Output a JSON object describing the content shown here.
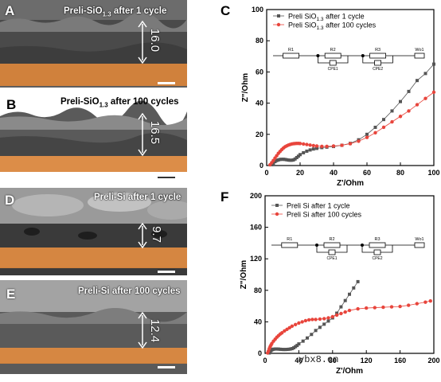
{
  "sem_panels": [
    {
      "letter": "A",
      "label_main": "Preli-SiO",
      "label_sub": "1.3",
      "label_tail": " after 1 cycle",
      "thickness": "16.0"
    },
    {
      "letter": "B",
      "label_main": "Preli-SiO",
      "label_sub": "1.3",
      "label_tail": " after 100 cycles",
      "thickness": "16.5"
    },
    {
      "letter": "D",
      "label_main": "Preli-Si after 1 cycle",
      "label_sub": "",
      "label_tail": "",
      "thickness": "9.7"
    },
    {
      "letter": "E",
      "label_main": "Preli-Si after 100 cycles",
      "label_sub": "",
      "label_tail": "",
      "thickness": "12.4"
    }
  ],
  "circuit": {
    "labels": [
      "R1",
      "R2",
      "R3",
      "Wo1"
    ],
    "cpe": [
      "CPE1",
      "CPE2"
    ]
  },
  "watermark": "ybx8.cn",
  "chart_data": [
    {
      "panel": "C",
      "type": "scatter",
      "xlabel": "Z'/Ohm",
      "ylabel": "Z\"/Ohm",
      "xlim": [
        0,
        100
      ],
      "ylim": [
        0,
        100
      ],
      "xticks": [
        0,
        20,
        40,
        60,
        80,
        100
      ],
      "yticks": [
        0,
        20,
        40,
        60,
        80,
        100
      ],
      "series": [
        {
          "name_main": "Preli SiO",
          "name_sub": "1.3",
          "name_tail": " after 1 cycle",
          "color": "#555555",
          "marker": "square",
          "x": [
            3,
            4,
            5,
            6,
            7,
            8,
            9,
            10,
            11,
            12,
            13,
            14,
            15,
            16,
            17,
            18,
            19,
            20,
            22,
            24,
            26,
            28,
            30,
            33,
            36,
            40,
            45,
            50,
            55,
            60,
            65,
            70,
            75,
            80,
            85,
            90,
            95,
            100
          ],
          "y": [
            0.5,
            1.5,
            2.5,
            3.2,
            3.6,
            3.9,
            4.0,
            4.0,
            3.9,
            3.7,
            3.5,
            3.4,
            3.4,
            3.6,
            4.2,
            5.1,
            6.0,
            7.0,
            8.2,
            9.2,
            10.0,
            10.6,
            11.0,
            11.5,
            11.8,
            12.2,
            13.0,
            14.2,
            16.5,
            20.0,
            24.5,
            29.5,
            35.0,
            41.0,
            47.5,
            54.5,
            59.0,
            65.0
          ]
        },
        {
          "name_main": "Preli SiO",
          "name_sub": "1.3",
          "name_tail": " after 100 cycles",
          "color": "#e8453c",
          "marker": "circle",
          "x": [
            2,
            3,
            4,
            5,
            6,
            7,
            8,
            9,
            10,
            11,
            12,
            13,
            14,
            15,
            16,
            17,
            18,
            19,
            20,
            22,
            24,
            26,
            28,
            30,
            33,
            36,
            40,
            45,
            50,
            55,
            60,
            65,
            70,
            75,
            80,
            85,
            90,
            95,
            100
          ],
          "y": [
            0.5,
            1.8,
            3.2,
            4.8,
            6.3,
            7.8,
            9.0,
            10.2,
            11.2,
            12.0,
            12.6,
            13.1,
            13.5,
            13.8,
            14.0,
            14.1,
            14.2,
            14.2,
            14.1,
            13.8,
            13.5,
            13.1,
            12.8,
            12.5,
            12.3,
            12.3,
            12.5,
            13.0,
            14.0,
            15.6,
            18.0,
            21.0,
            24.5,
            28.0,
            31.5,
            35.0,
            39.0,
            43.0,
            47.0
          ]
        }
      ]
    },
    {
      "panel": "F",
      "type": "scatter",
      "xlabel": "Z'/Ohm",
      "ylabel": "Z\"/Ohm",
      "xlim": [
        0,
        200
      ],
      "ylim": [
        0,
        200
      ],
      "xticks": [
        0,
        40,
        80,
        120,
        160,
        200
      ],
      "yticks": [
        0,
        40,
        80,
        120,
        160,
        200
      ],
      "series": [
        {
          "name_main": "Preli Si after 1 cycle",
          "name_sub": "",
          "name_tail": "",
          "color": "#555555",
          "marker": "square",
          "x": [
            5,
            6,
            7,
            8,
            9,
            10,
            12,
            14,
            16,
            18,
            20,
            22,
            24,
            26,
            28,
            30,
            32,
            34,
            36,
            38,
            40,
            45,
            50,
            55,
            60,
            65,
            70,
            75,
            80,
            85,
            90,
            95,
            100,
            105,
            110
          ],
          "y": [
            0.5,
            2,
            3.5,
            4.5,
            5.0,
            5.3,
            5.5,
            5.5,
            5.4,
            5.2,
            5.0,
            4.9,
            4.9,
            5.0,
            5.2,
            5.5,
            6,
            7,
            8.5,
            10,
            12,
            15.5,
            19.5,
            24,
            29,
            33,
            37,
            41,
            45,
            51,
            59,
            67,
            75,
            83,
            91
          ]
        },
        {
          "name_main": "Preli Si after 100 cycles",
          "name_sub": "",
          "name_tail": "",
          "color": "#e8453c",
          "marker": "circle",
          "x": [
            3,
            4,
            5,
            6,
            7,
            8,
            10,
            12,
            14,
            16,
            18,
            20,
            23,
            26,
            29,
            32,
            36,
            40,
            44,
            48,
            52,
            56,
            60,
            65,
            70,
            75,
            80,
            85,
            90,
            95,
            100,
            110,
            120,
            130,
            140,
            150,
            160,
            170,
            180,
            190,
            196
          ],
          "y": [
            0.5,
            3,
            6,
            8.5,
            10.5,
            12.5,
            15.5,
            18,
            20.5,
            22.5,
            24.5,
            26,
            28.5,
            30.5,
            32.5,
            34.5,
            36.5,
            38.5,
            40,
            41.5,
            42.5,
            43,
            43,
            43.5,
            44,
            45,
            46.5,
            48.5,
            50.5,
            52.5,
            54.5,
            56.5,
            57.5,
            58,
            58.5,
            59,
            59.5,
            61,
            63,
            65,
            66.5
          ]
        }
      ]
    }
  ]
}
